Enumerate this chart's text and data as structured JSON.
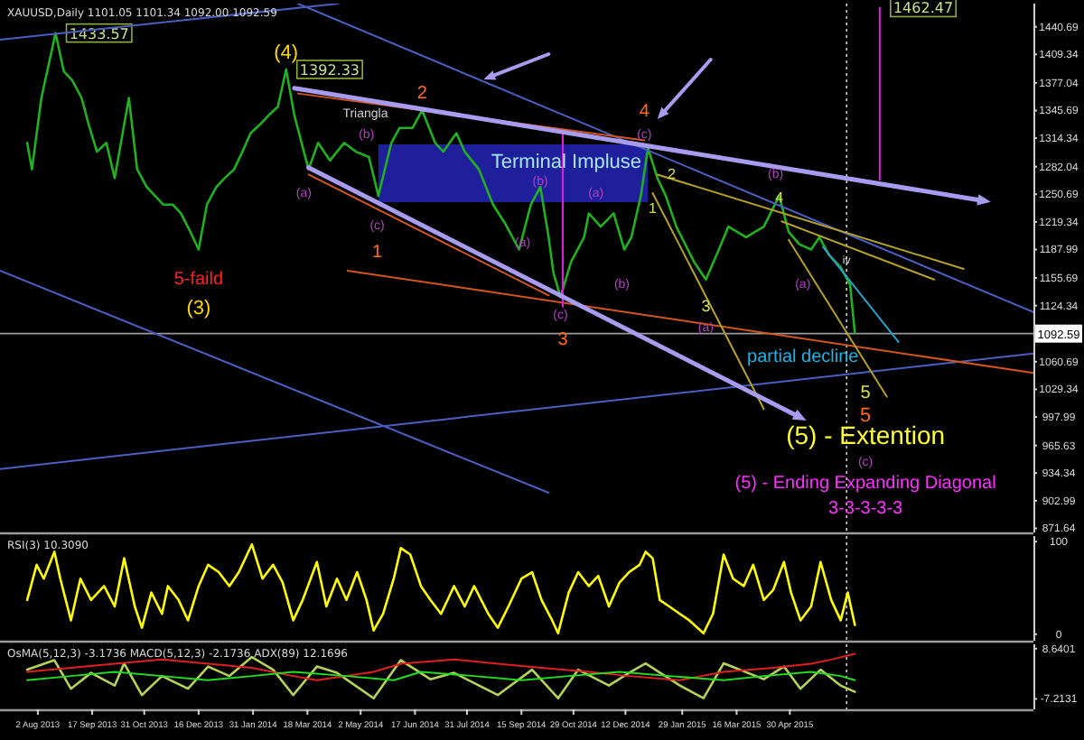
{
  "chart_data": [
    {
      "type": "line",
      "title": "XAUUSD,Daily 1101.05 1101.34 1092.00 1092.59",
      "xlim": [
        "2013-07-01",
        "2015-11-22"
      ],
      "ylim": [
        867,
        1467
      ],
      "tick_labels": "y",
      "yticks": [
        1440.69,
        1409.34,
        1377.04,
        1345.69,
        1314.34,
        1282.04,
        1250.69,
        1219.34,
        1187.99,
        1155.69,
        1124.34,
        1060.69,
        1029.34,
        997.99,
        965.63,
        934.34,
        902.99,
        871.64
      ],
      "ref_lines": [
        {
          "axis": "y",
          "value": 1092.59,
          "label": "1092.59",
          "color": "#9a9a9a",
          "line_style": "solid"
        },
        {
          "axis": "x",
          "value": "2015-06-17",
          "color": "#cccccc",
          "line_style": "dotted"
        }
      ],
      "series": [
        {
          "color": "#22b022",
          "x": [
            "2013-07-24",
            "2013-07-28",
            "2013-08-05",
            "2013-08-17",
            "2013-08-24",
            "2013-08-31",
            "2013-09-08",
            "2013-09-14",
            "2013-09-21",
            "2013-09-29",
            "2013-10-06",
            "2013-10-18",
            "2013-10-25",
            "2013-11-02",
            "2013-11-09",
            "2013-11-16",
            "2013-11-24",
            "2013-12-01",
            "2013-12-09",
            "2013-12-16",
            "2013-12-23",
            "2013-12-31",
            "2014-01-07",
            "2014-01-15",
            "2014-01-22",
            "2014-01-29",
            "2014-02-06",
            "2014-02-13",
            "2014-02-21",
            "2014-02-28",
            "2014-03-07",
            "2014-03-15",
            "2014-03-19",
            "2014-03-27",
            "2014-04-06",
            "2014-04-18",
            "2014-04-28",
            "2014-05-09",
            "2014-05-17",
            "2014-05-28",
            "2014-06-04",
            "2014-06-15",
            "2014-06-23",
            "2014-07-04",
            "2014-07-11",
            "2014-07-22",
            "2014-07-29",
            "2014-08-10",
            "2014-08-22",
            "2014-09-01",
            "2014-09-13",
            "2014-09-23",
            "2014-10-01",
            "2014-10-08",
            "2014-10-12",
            "2014-10-18",
            "2014-10-27",
            "2014-11-07",
            "2014-11-11",
            "2014-11-21",
            "2014-12-02",
            "2014-12-11",
            "2014-12-17",
            "2014-12-25",
            "2014-12-31",
            "2015-01-08",
            "2015-01-15",
            "2015-01-24",
            "2015-02-08",
            "2015-02-18",
            "2015-03-01",
            "2015-03-09",
            "2015-03-24",
            "2015-04-08",
            "2015-04-21",
            "2015-04-29",
            "2015-05-08",
            "2015-05-18",
            "2015-05-25",
            "2015-06-02",
            "2015-06-12",
            "2015-06-20",
            "2015-06-24"
          ],
          "values": [
            1309,
            1279,
            1360,
            1433.57,
            1390,
            1380,
            1360,
            1330,
            1299,
            1309,
            1269,
            1360,
            1279,
            1259,
            1249,
            1239,
            1239,
            1229,
            1208,
            1188,
            1239,
            1259,
            1269,
            1279,
            1299,
            1320,
            1330,
            1340,
            1350,
            1392.33,
            1340,
            1299,
            1279,
            1309,
            1289,
            1309,
            1299,
            1293,
            1249,
            1309,
            1326,
            1326,
            1346,
            1309,
            1299,
            1320,
            1299,
            1279,
            1239,
            1218,
            1188,
            1239,
            1259,
            1202,
            1162,
            1134,
            1174,
            1202,
            1229,
            1214,
            1229,
            1188,
            1202,
            1249,
            1303,
            1269,
            1249,
            1214,
            1174,
            1154,
            1188,
            1214,
            1202,
            1214,
            1249,
            1208,
            1194,
            1188,
            1202,
            1182,
            1168,
            1148,
            1093
          ],
          "value_labels": [
            null,
            null,
            null,
            "1433.57",
            null,
            null,
            null,
            null,
            null,
            null,
            null,
            null,
            null,
            null,
            null,
            null,
            null,
            null,
            null,
            null,
            null,
            null,
            null,
            null,
            null,
            null,
            null,
            null,
            null,
            "1392.33",
            null,
            null,
            null,
            null,
            null,
            null,
            null,
            null,
            null,
            null,
            null,
            null,
            null,
            null,
            null,
            null,
            null,
            null,
            null,
            null,
            null,
            null,
            null,
            null,
            null,
            null,
            null,
            null,
            null,
            null,
            null,
            null,
            null,
            null,
            null,
            null,
            null,
            null,
            null,
            null,
            null,
            null,
            null,
            null,
            null,
            null,
            null,
            null,
            null,
            null,
            null,
            null,
            null
          ]
        },
        {
          "color": "#4a5fc0",
          "x": [
            "2013-07-01",
            "2014-04-13"
          ],
          "values": [
            1426,
            1467
          ]
        },
        {
          "color": "#4a5fc0",
          "x": [
            "2014-03-10",
            "2015-11-22"
          ],
          "values": [
            1467,
            1117
          ]
        },
        {
          "color": "#4a5fc0",
          "x": [
            "2013-07-01",
            "2014-10-08"
          ],
          "values": [
            1164,
            912
          ]
        },
        {
          "color": "#4a5fc0",
          "x": [
            "2013-07-01",
            "2015-11-22"
          ],
          "values": [
            939,
            1070
          ]
        },
        {
          "color": "#d2551e",
          "x": [
            "2014-03-10",
            "2014-12-28"
          ],
          "values": [
            1365,
            1312
          ]
        },
        {
          "color": "#d2551e",
          "x": [
            "2014-03-19",
            "2014-10-08"
          ],
          "values": [
            1273,
            1136
          ]
        },
        {
          "color": "#d2551e",
          "x": [
            "2014-04-21",
            "2015-11-22"
          ],
          "values": [
            1164,
            1048
          ]
        },
        {
          "color": "#b5a02a",
          "x": [
            "2015-01-08",
            "2015-09-24"
          ],
          "values": [
            1273,
            1166
          ]
        },
        {
          "color": "#b5a02a",
          "x": [
            "2015-04-23",
            "2015-08-30"
          ],
          "values": [
            1220,
            1154
          ]
        },
        {
          "color": "#b5a02a",
          "x": [
            "2015-01-04",
            "2015-04-08"
          ],
          "values": [
            1252,
            1007
          ]
        },
        {
          "color": "#b5a02a",
          "x": [
            "2015-04-29",
            "2015-07-21"
          ],
          "values": [
            1199,
            1021
          ]
        },
        {
          "color": "#2aa0c8",
          "x": [
            "2015-05-28",
            "2015-07-31"
          ],
          "values": [
            1191,
            1083
          ]
        },
        {
          "color": "#e020e0",
          "x": [
            "2014-10-20",
            "2014-10-20"
          ],
          "values": [
            1322,
            1123
          ]
        },
        {
          "color": "#e020e0",
          "x": [
            "2015-07-15",
            "2015-07-15"
          ],
          "values": [
            1462.47,
            1267
          ],
          "value_labels": [
            "1462.47",
            null
          ]
        }
      ],
      "annotations": [
        "(4)",
        "Triangla",
        "2",
        "(b)",
        "(a)",
        "(c)",
        "1",
        "5-faild",
        "(3)",
        "Terminal Impluse",
        "(b)",
        "(a)",
        "(a)",
        "(b)",
        "(c)",
        "3",
        "4",
        "(c)",
        "2",
        "1",
        "(b)",
        "4",
        "3",
        "(a)",
        "(a)",
        "iv",
        "partial decline",
        "5",
        "5",
        "(5) -   Extention",
        "(c)",
        "(5) - Ending Expanding Diagonal",
        "3-3-3-3-3"
      ]
    },
    {
      "type": "line",
      "title": "RSI(3) 10.3090",
      "xlim": [
        "2013-07-01",
        "2015-11-22"
      ],
      "ylim": [
        -7,
        106
      ],
      "yticks": [
        100,
        0
      ],
      "tick_labels": "y",
      "ref_lines": [
        {
          "axis": "x",
          "value": "2015-06-17",
          "color": "#cccccc",
          "line_style": "dotted"
        }
      ],
      "series": [
        {
          "color": "#ffff00",
          "x": [
            "2013-07-24",
            "2013-08-01",
            "2013-08-07",
            "2013-08-16",
            "2013-08-21",
            "2013-08-30",
            "2013-09-07",
            "2013-09-16",
            "2013-09-27",
            "2013-10-06",
            "2013-10-14",
            "2013-10-23",
            "2013-10-29",
            "2013-11-06",
            "2013-11-15",
            "2013-11-20",
            "2013-11-29",
            "2013-12-07",
            "2013-12-16",
            "2013-12-24",
            "2014-01-02",
            "2014-01-11",
            "2014-01-19",
            "2014-01-30",
            "2014-02-08",
            "2014-02-17",
            "2014-02-25",
            "2014-03-06",
            "2014-03-14",
            "2014-03-26",
            "2014-04-03",
            "2014-04-12",
            "2014-04-20",
            "2014-04-29",
            "2014-05-07",
            "2014-05-13",
            "2014-05-21",
            "2014-05-30",
            "2014-06-05",
            "2014-06-13",
            "2014-06-22",
            "2014-06-30",
            "2014-07-09",
            "2014-07-20",
            "2014-07-29",
            "2014-08-06",
            "2014-08-18",
            "2014-08-26",
            "2014-09-04",
            "2014-09-15",
            "2014-09-24",
            "2014-10-02",
            "2014-10-11",
            "2014-10-16",
            "2014-10-25",
            "2014-11-02",
            "2014-11-11",
            "2014-11-19",
            "2014-11-28",
            "2014-12-07",
            "2014-12-15",
            "2014-12-24",
            "2014-12-29",
            "2015-01-04",
            "2015-01-10",
            "2015-01-18",
            "2015-01-27",
            "2015-02-04",
            "2015-02-16",
            "2015-02-24",
            "2015-03-05",
            "2015-03-13",
            "2015-03-22",
            "2015-03-30",
            "2015-04-08",
            "2015-04-16",
            "2015-04-25",
            "2015-05-01",
            "2015-05-09",
            "2015-05-18",
            "2015-05-26",
            "2015-06-04",
            "2015-06-12",
            "2015-06-18",
            "2015-06-24"
          ],
          "values": [
            37,
            75,
            60,
            89,
            60,
            15,
            60,
            37,
            52,
            30,
            82,
            30,
            7,
            45,
            22,
            52,
            37,
            15,
            52,
            75,
            67,
            52,
            67,
            97,
            60,
            75,
            56,
            15,
            37,
            78,
            30,
            60,
            37,
            67,
            37,
            4,
            22,
            60,
            93,
            86,
            52,
            37,
            22,
            52,
            30,
            52,
            22,
            7,
            30,
            60,
            67,
            37,
            15,
            1,
            45,
            67,
            52,
            63,
            30,
            56,
            67,
            75,
            89,
            82,
            37,
            30,
            22,
            15,
            1,
            22,
            86,
            60,
            52,
            75,
            37,
            48,
            78,
            45,
            15,
            30,
            78,
            37,
            15,
            45,
            10
          ]
        }
      ]
    },
    {
      "type": "line",
      "title": "OsMA(5,12,3) -3.1736  MACD(5,12,3) -2.1736  ADX(89) 12.1696",
      "xlim": [
        "2013-07-01",
        "2015-11-22"
      ],
      "ylim": [
        -10.5,
        10
      ],
      "yticks": [
        8.6401,
        -7.2131
      ],
      "xticks": [
        {
          "value": "2013-08-02",
          "label": "2 Aug 2013"
        },
        {
          "value": "2013-09-17",
          "label": "17 Sep 2013"
        },
        {
          "value": "2013-10-31",
          "label": "31 Oct 2013"
        },
        {
          "value": "2013-12-16",
          "label": "16 Dec 2013"
        },
        {
          "value": "2014-01-31",
          "label": "31 Jan 2014"
        },
        {
          "value": "2014-03-18",
          "label": "18 Mar 2014"
        },
        {
          "value": "2014-05-02",
          "label": "2 May 2014"
        },
        {
          "value": "2014-06-17",
          "label": "17 Jun 2014"
        },
        {
          "value": "2014-07-31",
          "label": "31 Jul 2014"
        },
        {
          "value": "2014-09-15",
          "label": "15 Sep 2014"
        },
        {
          "value": "2014-10-29",
          "label": "29 Oct 2014"
        },
        {
          "value": "2014-12-12",
          "label": "12 Dec 2014"
        },
        {
          "value": "2015-01-29",
          "label": "29 Jan 2015"
        },
        {
          "value": "2015-03-16",
          "label": "16 Mar 2015"
        },
        {
          "value": "2015-04-30",
          "label": "30 Apr 2015"
        }
      ],
      "ref_lines": [
        {
          "axis": "x",
          "value": "2015-06-17",
          "color": "#cccccc",
          "line_style": "dotted"
        }
      ],
      "series": [
        {
          "color": "#b5d35a",
          "x": [
            "2013-07-24",
            "2013-08-16",
            "2013-08-30",
            "2013-09-16",
            "2013-10-06",
            "2013-10-14",
            "2013-10-29",
            "2013-11-15",
            "2013-12-07",
            "2013-12-24",
            "2014-01-11",
            "2014-01-30",
            "2014-02-17",
            "2014-03-06",
            "2014-03-26",
            "2014-04-12",
            "2014-05-13",
            "2014-06-05",
            "2014-06-30",
            "2014-07-20",
            "2014-08-26",
            "2014-09-24",
            "2014-10-16",
            "2014-11-02",
            "2014-11-28",
            "2014-12-15",
            "2014-12-29",
            "2015-01-27",
            "2015-02-16",
            "2015-03-05",
            "2015-04-08",
            "2015-04-25",
            "2015-05-09",
            "2015-05-26",
            "2015-06-12",
            "2015-06-24"
          ],
          "values": [
            2,
            5,
            -4,
            1,
            -3,
            4,
            -6,
            0,
            -4,
            3,
            0,
            6,
            2,
            -6,
            3,
            1,
            -7,
            5,
            -1,
            1,
            -6,
            2,
            -7,
            2,
            -3,
            1,
            4,
            -3,
            -7,
            4,
            -1,
            3,
            -4,
            2,
            -3,
            -5
          ]
        },
        {
          "color": "#e02020",
          "x": [
            "2013-07-24",
            "2013-08-30",
            "2013-10-06",
            "2013-11-15",
            "2013-12-24",
            "2014-01-30",
            "2014-03-06",
            "2014-03-26",
            "2014-05-13",
            "2014-06-05",
            "2014-07-20",
            "2014-08-26",
            "2014-10-02",
            "2014-11-11",
            "2014-12-15",
            "2015-01-27",
            "2015-03-05",
            "2015-04-16",
            "2015-05-18",
            "2015-06-04",
            "2015-06-24"
          ],
          "values": [
            1.3,
            2.6,
            3.9,
            5.2,
            3.9,
            2.6,
            0,
            -1.3,
            1.3,
            3.9,
            5.2,
            3.9,
            2.6,
            1.3,
            0,
            -1.3,
            1.3,
            2.6,
            3.9,
            5.2,
            7
          ]
        },
        {
          "color": "#22dd22",
          "x": [
            "2013-07-24",
            "2013-08-30",
            "2013-10-06",
            "2013-11-15",
            "2013-12-24",
            "2014-01-30",
            "2014-03-06",
            "2014-04-20",
            "2014-05-30",
            "2014-06-22",
            "2014-08-06",
            "2014-09-15",
            "2014-10-25",
            "2014-12-07",
            "2015-01-18",
            "2015-03-05",
            "2015-04-08",
            "2015-05-18",
            "2015-06-12",
            "2015-06-24"
          ],
          "values": [
            -1.3,
            0,
            1.3,
            0,
            -1.3,
            0,
            1.3,
            0,
            -1.3,
            1.3,
            0,
            -1.3,
            0,
            1.3,
            0,
            -1.3,
            0,
            1.3,
            0,
            -1.3
          ]
        }
      ]
    }
  ]
}
